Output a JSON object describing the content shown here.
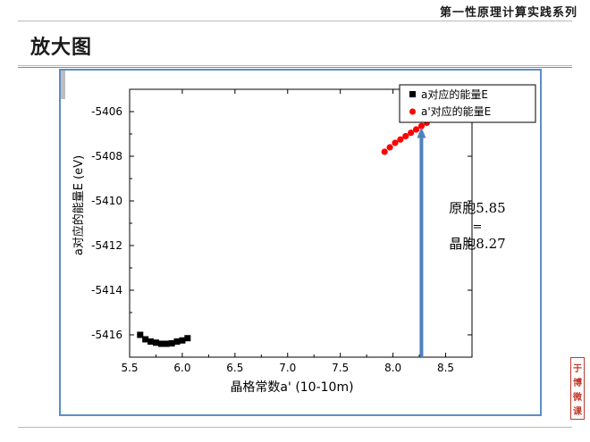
{
  "slide": {
    "series_title": "第一性原理计算实践系列",
    "title": "放大图",
    "stamp_chars": [
      "于",
      "博",
      "微",
      "课"
    ]
  },
  "colors": {
    "series_a": "#000000",
    "series_b": "#ff0000",
    "arrow": "#4f81bd",
    "frame": "#5b8fc6",
    "stamp": "#c0392b"
  },
  "chart_data": {
    "type": "scatter",
    "xlabel": "晶格常数a' (10-10m)",
    "ylabel": "a对应的能量E (eV)",
    "xlim": [
      5.5,
      8.75
    ],
    "ylim": [
      -5417,
      -5405
    ],
    "xticks": [
      "5.5",
      "6.0",
      "6.5",
      "7.0",
      "7.5",
      "8.0",
      "8.5"
    ],
    "yticks": [
      "-5416",
      "-5414",
      "-5412",
      "-5410",
      "-5408",
      "-5406"
    ],
    "legend_position": "top-right",
    "series": [
      {
        "name": "a对应的能量E",
        "marker": "square",
        "x": [
          5.6,
          5.65,
          5.7,
          5.75,
          5.8,
          5.85,
          5.9,
          5.95,
          6.0,
          6.05
        ],
        "y": [
          -5416.0,
          -5416.2,
          -5416.3,
          -5416.35,
          -5416.4,
          -5416.4,
          -5416.38,
          -5416.3,
          -5416.25,
          -5416.15
        ]
      },
      {
        "name": "a'对应的能量E",
        "marker": "circle",
        "x": [
          7.92,
          7.97,
          8.02,
          8.07,
          8.12,
          8.17,
          8.22,
          8.27,
          8.32,
          8.37,
          8.42,
          8.47,
          8.52,
          8.57
        ],
        "y": [
          -5407.8,
          -5407.6,
          -5407.4,
          -5407.25,
          -5407.1,
          -5406.95,
          -5406.8,
          -5406.65,
          -5406.5,
          -5406.35,
          -5406.2,
          -5406.05,
          -5405.9,
          -5405.7
        ]
      }
    ],
    "annotation": {
      "arrow_x": 8.27,
      "lines": [
        "原胞5.85",
        "=",
        "晶胞8.27"
      ]
    }
  }
}
